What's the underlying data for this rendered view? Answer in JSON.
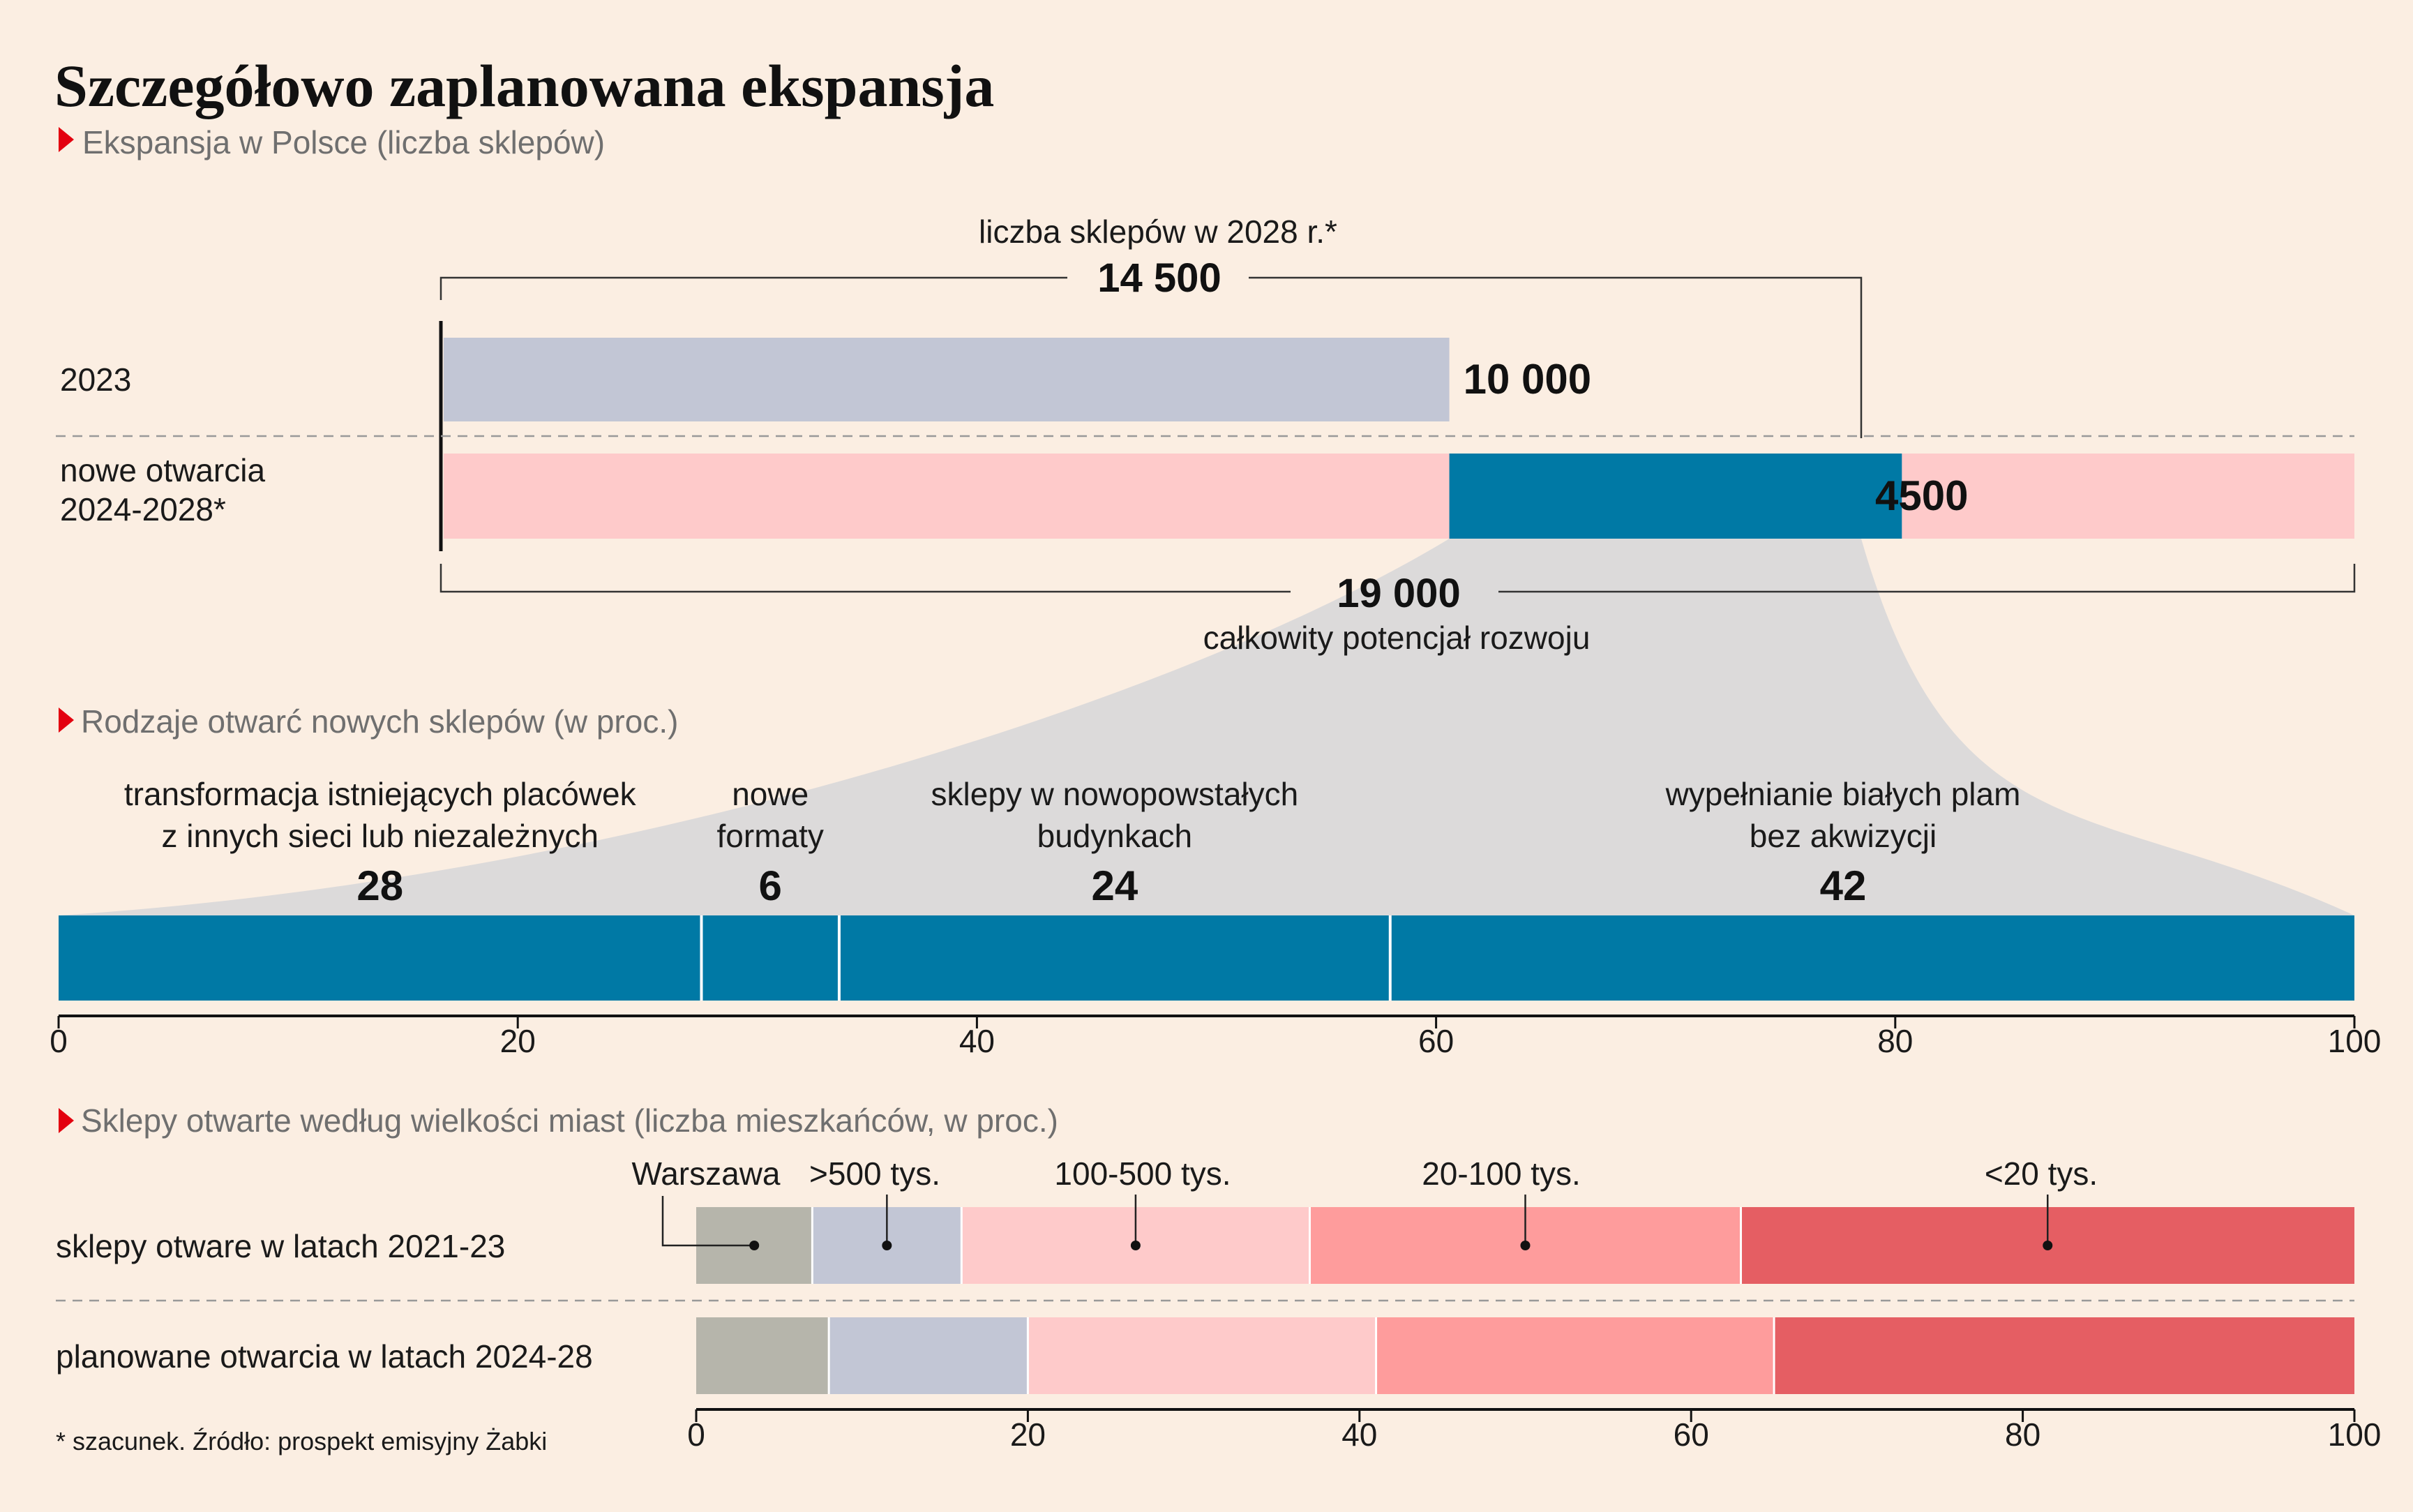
{
  "title": "Szczegółowo zaplanowana ekspansja",
  "colors": {
    "background": "#FBEEE2",
    "grey_blue": "#C2C6D5",
    "light_pink": "#FECACA",
    "teal": "#0079A5",
    "fan": "#DCDADA",
    "warszawa": "#B6B5AB",
    "over500": "#C2C6D5",
    "r100_500": "#FECACA",
    "r20_100": "#FE9C9C",
    "under20": "#E55E63",
    "marker": "#E3000F"
  },
  "section1": {
    "subtitle": "Ekspansja w Polsce (liczba sklepów)",
    "bracket_top_label": "liczba sklepów w 2028 r.*",
    "bracket_top_value": "14 500",
    "bracket_bottom_value": "19 000",
    "bracket_bottom_label": "całkowity potencjał rozwoju",
    "row1_label": "2023",
    "row1_value_label": "10 000",
    "row2_label_line1": "nowe otwarcia",
    "row2_label_line2": "2024-2028*",
    "row2_value_label": "4500"
  },
  "section2": {
    "subtitle": "Rodzaje otwarć nowych sklepów (w proc.)",
    "axis_ticks": [
      "0",
      "20",
      "40",
      "60",
      "80",
      "100"
    ],
    "segments": [
      {
        "line1": "transformacja istniejących placówek",
        "line2": "z innych sieci lub niezależnych",
        "value_label": "28"
      },
      {
        "line1": "nowe",
        "line2": "formaty",
        "value_label": "6"
      },
      {
        "line1": "sklepy w nowopowstałych",
        "line2": "budynkach",
        "value_label": "24"
      },
      {
        "line1": "wypełnianie białych plam",
        "line2": "bez akwizycji",
        "value_label": "42"
      }
    ]
  },
  "section3": {
    "subtitle": "Sklepy otwarte według wielkości miast (liczba mieszkańców, w proc.)",
    "categories": [
      "Warszawa",
      ">500 tys.",
      "100-500 tys.",
      "20-100 tys.",
      "<20 tys."
    ],
    "row_labels": [
      "sklepy otware w latach 2021-23",
      "planowane otwarcia w latach 2024-28"
    ],
    "axis_ticks": [
      "0",
      "20",
      "40",
      "60",
      "80",
      "100"
    ]
  },
  "footnote": "* szacunek. Źródło: prospekt emisyjny Żabki",
  "chart_data": [
    {
      "type": "bar",
      "title": "Ekspansja w Polsce (liczba sklepów)",
      "categories": [
        "2023",
        "nowe otwarcia 2024-2028*"
      ],
      "values": [
        10000,
        4500
      ],
      "totals": {
        "liczba sklepów w 2028 r.*": 14500,
        "całkowity potencjał rozwoju": 19000
      }
    },
    {
      "type": "bar",
      "title": "Rodzaje otwarć nowych sklepów (w proc.)",
      "categories": [
        "transformacja istniejących placówek z innych sieci lub niezależnych",
        "nowe formaty",
        "sklepy w nowopowstałych budynkach",
        "wypełnianie białych plam bez akwizycji"
      ],
      "values": [
        28,
        6,
        24,
        42
      ],
      "xlim": [
        0,
        100
      ]
    },
    {
      "type": "bar",
      "title": "Sklepy otwarte według wielkości miast (liczba mieszkańców, w proc.)",
      "categories": [
        "sklepy otware w latach 2021-23",
        "planowane otwarcia w latach 2024-28"
      ],
      "series": [
        {
          "name": "Warszawa",
          "values": [
            7,
            8
          ]
        },
        {
          "name": ">500 tys.",
          "values": [
            9,
            12
          ]
        },
        {
          "name": "100-500 tys.",
          "values": [
            21,
            21
          ]
        },
        {
          "name": "20-100 tys.",
          "values": [
            26,
            24
          ]
        },
        {
          "name": "<20 tys.",
          "values": [
            37,
            35
          ]
        }
      ],
      "xlim": [
        0,
        100
      ]
    }
  ]
}
